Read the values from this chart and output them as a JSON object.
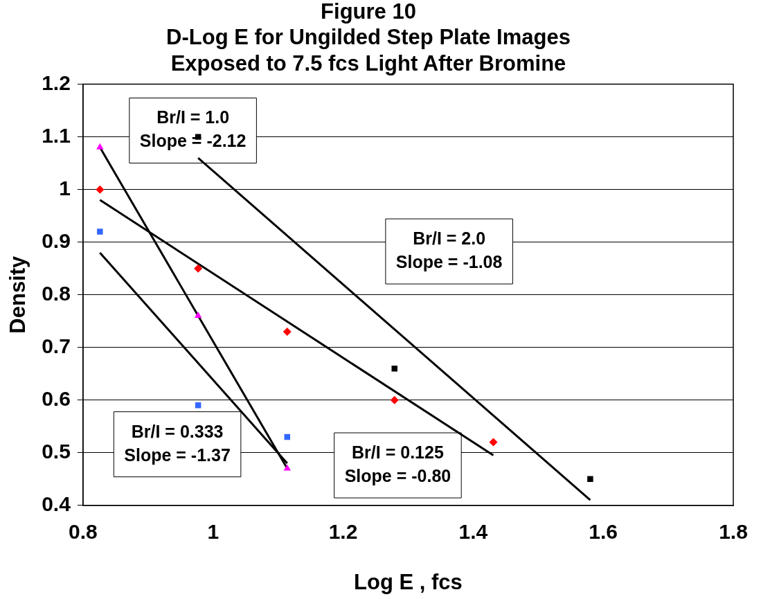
{
  "chart_data": {
    "type": "scatter",
    "title": "Figure 10\nD-Log E for Ungilded Step Plate Images\nExposed to 7.5 fcs Light After Bromine",
    "xlabel": "Log E , fcs",
    "ylabel": "Density",
    "xlim": [
      0.8,
      1.8
    ],
    "xticks": [
      0.8,
      1,
      1.2,
      1.4,
      1.6,
      1.8
    ],
    "ylim": [
      0.4,
      1.2
    ],
    "yticks": [
      0.4,
      0.5,
      0.6,
      0.7,
      0.8,
      0.9,
      1,
      1.1,
      1.2
    ],
    "grid": "y",
    "legend": false,
    "series": [
      {
        "color": "#000000",
        "marker": "square",
        "x": [
          0.977,
          1.279,
          1.58
        ],
        "values": [
          1.1,
          0.66,
          0.45
        ]
      },
      {
        "color": "#ff0000",
        "marker": "diamond",
        "x": [
          0.826,
          0.977,
          1.114,
          1.279,
          1.431
        ],
        "values": [
          1.0,
          0.85,
          0.73,
          0.6,
          0.52
        ]
      },
      {
        "color": "#3366ff",
        "marker": "square",
        "x": [
          0.826,
          0.977,
          1.114
        ],
        "values": [
          0.92,
          0.59,
          0.53
        ]
      },
      {
        "color": "#ff00ff",
        "marker": "triangle",
        "x": [
          0.826,
          0.977,
          1.114
        ],
        "values": [
          1.08,
          0.76,
          0.47
        ]
      },
      {
        "type": "line",
        "color": "#000000",
        "marker": "none",
        "x": [
          0.977,
          1.58
        ],
        "values": [
          1.06,
          0.41
        ]
      },
      {
        "type": "line",
        "color": "#000000",
        "marker": "none",
        "x": [
          0.826,
          1.431
        ],
        "values": [
          0.98,
          0.495
        ]
      },
      {
        "type": "line",
        "color": "#000000",
        "marker": "none",
        "x": [
          0.826,
          1.114
        ],
        "values": [
          0.88,
          0.48
        ]
      },
      {
        "type": "line",
        "color": "#000000",
        "marker": "none",
        "x": [
          0.826,
          1.114
        ],
        "values": [
          1.08,
          0.47
        ]
      }
    ],
    "annotations": [
      "Br/I = 1.0\nSlope = -2.12",
      "Br/I = 2.0\nSlope = -1.08",
      "Br/I = 0.333\nSlope = -1.37",
      "Br/I = 0.125\nSlope = -0.80"
    ]
  }
}
